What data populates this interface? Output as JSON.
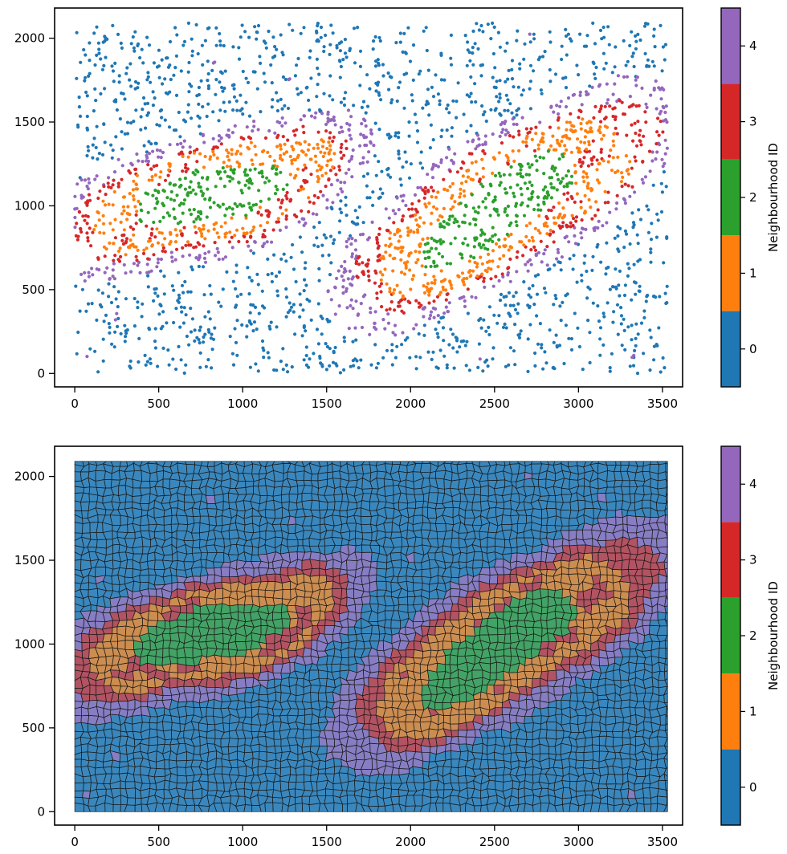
{
  "colors": {
    "nbhd_0": "#1f77b4",
    "nbhd_1": "#ff7f0e",
    "nbhd_2": "#2ca02c",
    "nbhd_3": "#d62728",
    "nbhd_4": "#9467bd",
    "voronoi_edge": "#1a1a1a"
  },
  "chart_data": [
    {
      "type": "scatter",
      "title": "",
      "xlabel": "",
      "ylabel": "",
      "xlim": [
        -120,
        3620
      ],
      "ylim": [
        -80,
        2180
      ],
      "xticks": [
        0,
        500,
        1000,
        1500,
        2000,
        2500,
        3000,
        3500
      ],
      "yticks": [
        0,
        500,
        1000,
        1500,
        2000
      ],
      "grid": false,
      "colorbar": {
        "label": "Neighbourhood ID",
        "ticks": [
          0,
          1,
          2,
          3,
          4
        ],
        "range": [
          -0.5,
          4.5
        ],
        "type": "discrete"
      },
      "series": [
        {
          "category": 0,
          "description_points": "sparse background cells across whole tissue"
        },
        {
          "category": 1,
          "points": "orange ring around two tissue lobes"
        },
        {
          "category": 2,
          "points": "green core of two lobes"
        },
        {
          "category": 3,
          "points": "red outer ring of lobes"
        },
        {
          "category": 4,
          "points": "purple halo around lobes"
        }
      ],
      "regions": {
        "lobe_left": {
          "center": [
            800,
            1060
          ],
          "semi_axes": [
            820,
            290
          ],
          "angle_deg": 17
        },
        "lobe_right": {
          "center": [
            2560,
            1000
          ],
          "semi_axes": [
            960,
            330
          ],
          "angle_deg": 32
        },
        "bridge": {
          "center": [
            1520,
            1300
          ],
          "semi_axes": [
            230,
            170
          ],
          "angle_deg": -35
        }
      },
      "data_extent": {
        "x": [
          0,
          3530
        ],
        "y": [
          0,
          2090
        ]
      }
    },
    {
      "type": "voronoi",
      "title": "",
      "xlabel": "",
      "ylabel": "",
      "xlim": [
        -120,
        3620
      ],
      "ylim": [
        -80,
        2180
      ],
      "xticks": [
        0,
        500,
        1000,
        1500,
        2000,
        2500,
        3000,
        3500
      ],
      "yticks": [
        0,
        500,
        1000,
        1500,
        2000
      ],
      "grid": false,
      "colorbar": {
        "label": "Neighbourhood ID",
        "ticks": [
          0,
          1,
          2,
          3,
          4
        ],
        "range": [
          -0.5,
          4.5
        ],
        "type": "discrete"
      },
      "fill_alpha": 0.65,
      "data_extent": {
        "x": [
          0,
          3530
        ],
        "y": [
          0,
          2090
        ]
      }
    }
  ]
}
